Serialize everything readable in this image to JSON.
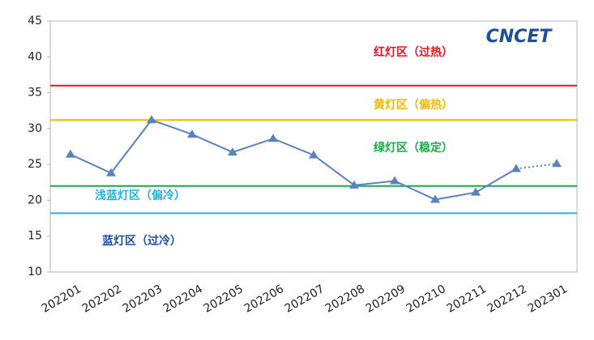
{
  "chart_data": {
    "type": "line",
    "logo": "CNCET",
    "categories": [
      "202201",
      "202202",
      "202203",
      "202204",
      "202205",
      "202206",
      "202207",
      "202208",
      "202209",
      "202210",
      "202211",
      "202212",
      "202301"
    ],
    "values": [
      26.4,
      23.8,
      31.2,
      29.2,
      26.7,
      28.6,
      26.3,
      22.1,
      22.7,
      20.1,
      21.1,
      24.4,
      25.1
    ],
    "color": "#5b82bf",
    "marker": "triangle",
    "last_segment_style": "dotted",
    "ylim": [
      10,
      45
    ],
    "yticks": [
      10,
      15,
      20,
      25,
      30,
      35,
      40,
      45
    ],
    "grid": false,
    "reference_lines": [
      {
        "value": 36,
        "color": "#e8141c"
      },
      {
        "value": 31.2,
        "color": "#f5b800"
      },
      {
        "value": 22,
        "color": "#1aaa4a"
      },
      {
        "value": 18.2,
        "color": "#1eb4e6"
      }
    ],
    "annotations": [
      {
        "text": "红灯区（过热）",
        "color": "#e8141c"
      },
      {
        "text": "黄灯区（偏热）",
        "color": "#f5b800"
      },
      {
        "text": "绿灯区（稳定）",
        "color": "#1aaa4a"
      },
      {
        "text": "浅蓝灯区（偏冷）",
        "color": "#1eb4e6"
      },
      {
        "text": "蓝灯区（过冷）",
        "color": "#1f4ea3"
      }
    ]
  }
}
